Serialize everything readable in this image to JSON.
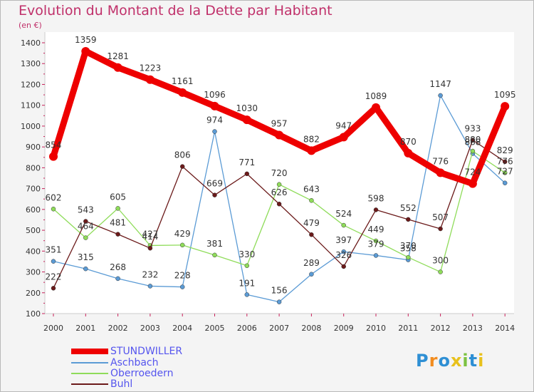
{
  "title": "Evolution du Montant de la Dette par Habitant",
  "subtitle": "(en €)",
  "logo": "Proxiti",
  "chart_data": {
    "type": "line",
    "x": [
      "2000",
      "2001",
      "2002",
      "2003",
      "2004",
      "2005",
      "2006",
      "2007",
      "2008",
      "2009",
      "2010",
      "2011",
      "2012",
      "2013",
      "2014"
    ],
    "ylim": [
      100,
      1400
    ],
    "yticks": [
      100,
      200,
      300,
      400,
      500,
      600,
      700,
      800,
      900,
      1000,
      1100,
      1200,
      1300,
      1400
    ],
    "grid": false,
    "legend_position": "bottom-left",
    "series": [
      {
        "name": "STUNDWILLER",
        "color": "#ee0000",
        "values": [
          854,
          1359,
          1281,
          1223,
          1161,
          1096,
          1030,
          957,
          882,
          947,
          1089,
          870,
          776,
          724,
          1095
        ]
      },
      {
        "name": "Aschbach",
        "color": "#5b9bd5",
        "values": [
          351,
          315,
          268,
          232,
          228,
          974,
          191,
          156,
          289,
          397,
          379,
          358,
          1147,
          868,
          727
        ]
      },
      {
        "name": "Oberroedern",
        "color": "#8fdc5a",
        "values": [
          602,
          464,
          605,
          427,
          429,
          381,
          330,
          720,
          643,
          524,
          449,
          370,
          300,
          880,
          776
        ]
      },
      {
        "name": "Buhl",
        "color": "#6b1a1a",
        "values": [
          222,
          543,
          481,
          414,
          806,
          669,
          771,
          626,
          479,
          326,
          598,
          552,
          507,
          933,
          829
        ]
      }
    ]
  }
}
